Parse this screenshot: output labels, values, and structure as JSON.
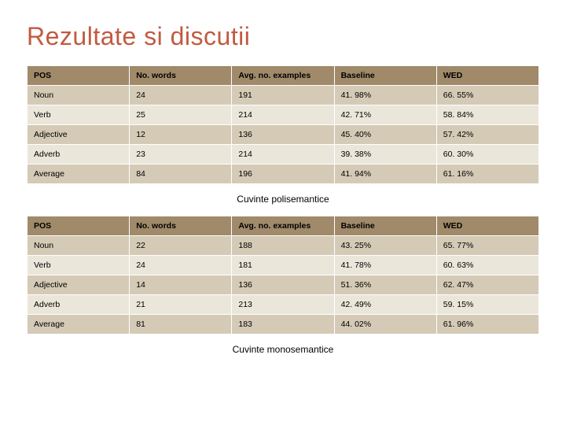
{
  "title": "Rezultate si discutii",
  "title_color": "#c15b3f",
  "header_bg": "#a08a6a",
  "row_even_bg": "#d4cab6",
  "row_odd_bg": "#ebe6da",
  "table1": {
    "columns": [
      "POS",
      "No. words",
      "Avg. no. examples",
      "Baseline",
      "WED"
    ],
    "rows": [
      [
        "Noun",
        "24",
        "191",
        "41. 98%",
        "66. 55%"
      ],
      [
        "Verb",
        "25",
        "214",
        "42. 71%",
        "58. 84%"
      ],
      [
        "Adjective",
        "12",
        "136",
        "45. 40%",
        "57. 42%"
      ],
      [
        "Adverb",
        "23",
        "214",
        "39. 38%",
        "60. 30%"
      ],
      [
        "Average",
        "84",
        "196",
        "41. 94%",
        "61. 16%"
      ]
    ],
    "caption": "Cuvinte polisemantice"
  },
  "table2": {
    "columns": [
      "POS",
      "No. words",
      "Avg. no. examples",
      "Baseline",
      "WED"
    ],
    "rows": [
      [
        "Noun",
        "22",
        "188",
        "43. 25%",
        "65. 77%"
      ],
      [
        "Verb",
        "24",
        "181",
        "41. 78%",
        "60. 63%"
      ],
      [
        "Adjective",
        "14",
        "136",
        "51. 36%",
        "62. 47%"
      ],
      [
        "Adverb",
        "21",
        "213",
        "42. 49%",
        "59. 15%"
      ],
      [
        "Average",
        "81",
        "183",
        "44. 02%",
        "61. 96%"
      ]
    ],
    "caption": "Cuvinte monosemantice"
  }
}
